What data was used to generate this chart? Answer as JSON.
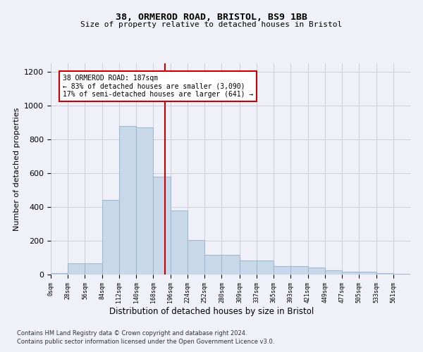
{
  "title1": "38, ORMEROD ROAD, BRISTOL, BS9 1BB",
  "title2": "Size of property relative to detached houses in Bristol",
  "xlabel": "Distribution of detached houses by size in Bristol",
  "ylabel": "Number of detached properties",
  "bar_values": [
    10,
    65,
    65,
    440,
    880,
    870,
    580,
    380,
    205,
    115,
    115,
    85,
    85,
    50,
    50,
    40,
    25,
    15,
    15,
    10,
    5
  ],
  "bin_edges": [
    0,
    28,
    56,
    84,
    112,
    140,
    168,
    196,
    224,
    252,
    280,
    309,
    337,
    365,
    393,
    421,
    449,
    477,
    505,
    533,
    561,
    589
  ],
  "bar_color": "#c8d8e8",
  "bar_edge_color": "#a0b8d0",
  "vline_x": 187,
  "vline_color": "#cc0000",
  "annotation_text": "38 ORMEROD ROAD: 187sqm\n← 83% of detached houses are smaller (3,090)\n17% of semi-detached houses are larger (641) →",
  "annotation_box_color": "#ffffff",
  "annotation_box_edge": "#cc0000",
  "ylim": [
    0,
    1250
  ],
  "yticks": [
    0,
    200,
    400,
    600,
    800,
    1000,
    1200
  ],
  "tick_labels": [
    "0sqm",
    "28sqm",
    "56sqm",
    "84sqm",
    "112sqm",
    "140sqm",
    "168sqm",
    "196sqm",
    "224sqm",
    "252sqm",
    "280sqm",
    "309sqm",
    "337sqm",
    "365sqm",
    "393sqm",
    "421sqm",
    "449sqm",
    "477sqm",
    "505sqm",
    "533sqm",
    "561sqm"
  ],
  "footer1": "Contains HM Land Registry data © Crown copyright and database right 2024.",
  "footer2": "Contains public sector information licensed under the Open Government Licence v3.0.",
  "bg_color": "#f0f0f8",
  "grid_color": "#ccccdd"
}
